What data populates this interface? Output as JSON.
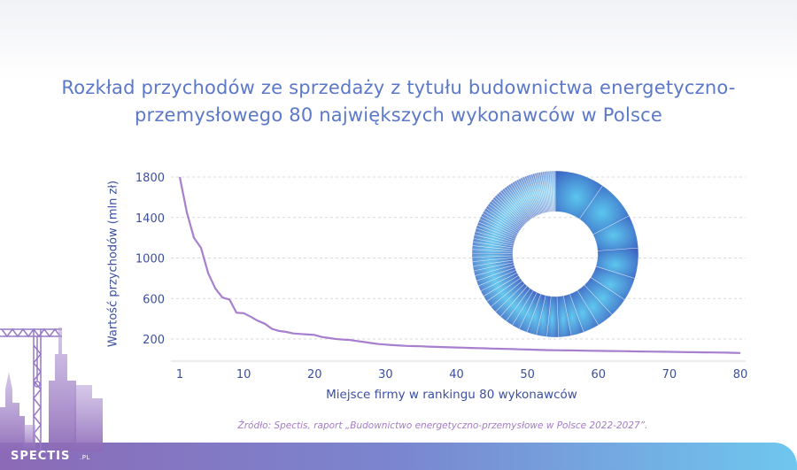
{
  "title": "Rozkład przychodów ze sprzedaży z tytułu budownictwa energetyczno-przemysłowego 80 największych wykonawców w Polsce",
  "source_note": "Źródło: Spectis, raport „Budownictwo energetyczno-przemysłowe w Polsce 2022-2027”.",
  "logo": {
    "text": "SPECTIS",
    "suffix": ".PL"
  },
  "colors": {
    "title": "#5b78c9",
    "axis_text": "#3b4fa2",
    "line": "#a77fce",
    "grid": "#d7d9e2",
    "donut_dark": "#3a5fc0",
    "donut_light": "#5bc6ee",
    "footer_start": "#8c6ab7",
    "footer_end": "#6ec7ef"
  },
  "icons": {
    "skyline": "city-skyline-crane-icon"
  },
  "chart_data": [
    {
      "type": "line",
      "title": "",
      "xlabel": "Miejsce firmy w rankingu 80 wykonawców",
      "ylabel": "Wartość przychodów (mln zł)",
      "xlim": [
        1,
        80
      ],
      "ylim": [
        50,
        1800
      ],
      "x_ticks": [
        1,
        10,
        20,
        30,
        40,
        50,
        60,
        70,
        80
      ],
      "y_ticks": [
        200,
        600,
        1000,
        1400,
        1800
      ],
      "grid": "horizontal dashed",
      "series": [
        {
          "x": [
            1,
            2,
            3,
            4,
            5,
            6,
            7,
            8,
            9,
            10,
            11,
            12,
            13,
            14,
            15,
            16,
            17,
            18,
            19,
            20,
            21,
            22,
            23,
            24,
            25,
            26,
            27,
            28,
            29,
            30,
            31,
            32,
            33,
            34,
            35,
            36,
            37,
            38,
            39,
            40,
            41,
            42,
            43,
            44,
            45,
            46,
            47,
            48,
            49,
            50,
            51,
            52,
            53,
            54,
            55,
            56,
            57,
            58,
            59,
            60,
            61,
            62,
            63,
            64,
            65,
            66,
            67,
            68,
            69,
            70,
            71,
            72,
            73,
            74,
            75,
            76,
            77,
            78,
            79,
            80
          ],
          "values": [
            1800,
            1450,
            1200,
            1100,
            850,
            700,
            610,
            590,
            460,
            455,
            420,
            380,
            350,
            300,
            280,
            270,
            255,
            250,
            245,
            240,
            220,
            210,
            200,
            195,
            190,
            180,
            170,
            160,
            150,
            145,
            140,
            135,
            132,
            130,
            128,
            125,
            122,
            120,
            118,
            116,
            114,
            112,
            110,
            108,
            106,
            104,
            102,
            100,
            98,
            96,
            94,
            92,
            90,
            89,
            88,
            87,
            86,
            85,
            84,
            83,
            82,
            81,
            80,
            79,
            78,
            77,
            76,
            75,
            74,
            73,
            72,
            71,
            70,
            69,
            68,
            67,
            66,
            65,
            64,
            62
          ]
        }
      ]
    },
    {
      "type": "pie",
      "title": "",
      "style": "donut",
      "values": [
        1800,
        1450,
        1200,
        1100,
        850,
        700,
        610,
        590,
        460,
        455,
        420,
        380,
        350,
        300,
        280,
        270,
        255,
        250,
        245,
        240,
        220,
        210,
        200,
        195,
        190,
        180,
        170,
        160,
        150,
        145,
        140,
        135,
        132,
        130,
        128,
        125,
        122,
        120,
        118,
        116,
        114,
        112,
        110,
        108,
        106,
        104,
        102,
        100,
        98,
        96,
        94,
        92,
        90,
        89,
        88,
        87,
        86,
        85,
        84,
        83,
        82,
        81,
        80,
        79,
        78,
        77,
        76,
        75,
        74,
        73,
        72,
        71,
        70,
        69,
        68,
        67,
        66,
        65,
        64,
        62
      ]
    }
  ]
}
